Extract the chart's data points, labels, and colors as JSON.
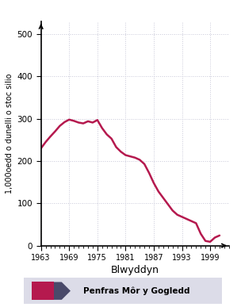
{
  "years": [
    1963,
    1964,
    1965,
    1966,
    1967,
    1968,
    1969,
    1970,
    1971,
    1972,
    1973,
    1974,
    1975,
    1976,
    1977,
    1978,
    1979,
    1980,
    1981,
    1982,
    1983,
    1984,
    1985,
    1986,
    1987,
    1988,
    1989,
    1990,
    1991,
    1992,
    1993,
    1994,
    1995,
    1996,
    1997,
    1998,
    1999,
    2000,
    2001
  ],
  "values": [
    230,
    245,
    258,
    270,
    283,
    292,
    298,
    295,
    291,
    289,
    294,
    291,
    297,
    278,
    263,
    253,
    233,
    222,
    214,
    211,
    208,
    203,
    193,
    172,
    148,
    128,
    113,
    98,
    83,
    73,
    68,
    63,
    58,
    53,
    28,
    11,
    9,
    19,
    24
  ],
  "line_color": "#b5194e",
  "line_width": 1.8,
  "ylabel": "1,000oedd o dunelli o stoc silio",
  "xlabel": "Blwyddyn",
  "xtick_labels": [
    "1963",
    "1969",
    "1975",
    "1981",
    "1987",
    "1993",
    "1999"
  ],
  "xtick_positions": [
    1963,
    1969,
    1975,
    1981,
    1987,
    1993,
    1999
  ],
  "ytick_labels": [
    "0",
    "100",
    "200",
    "300",
    "400",
    "500"
  ],
  "ytick_values": [
    0,
    100,
    200,
    300,
    400,
    500
  ],
  "ylim": [
    0,
    530
  ],
  "xlim": [
    1963,
    2003
  ],
  "grid_color": "#c8c8d8",
  "legend_label": "Penfras Môr y Gogledd",
  "legend_square_color": "#b5194e",
  "legend_arrow_color": "#4a4a6a",
  "legend_bg_color": "#dcdce8",
  "bg_color": "#ffffff"
}
